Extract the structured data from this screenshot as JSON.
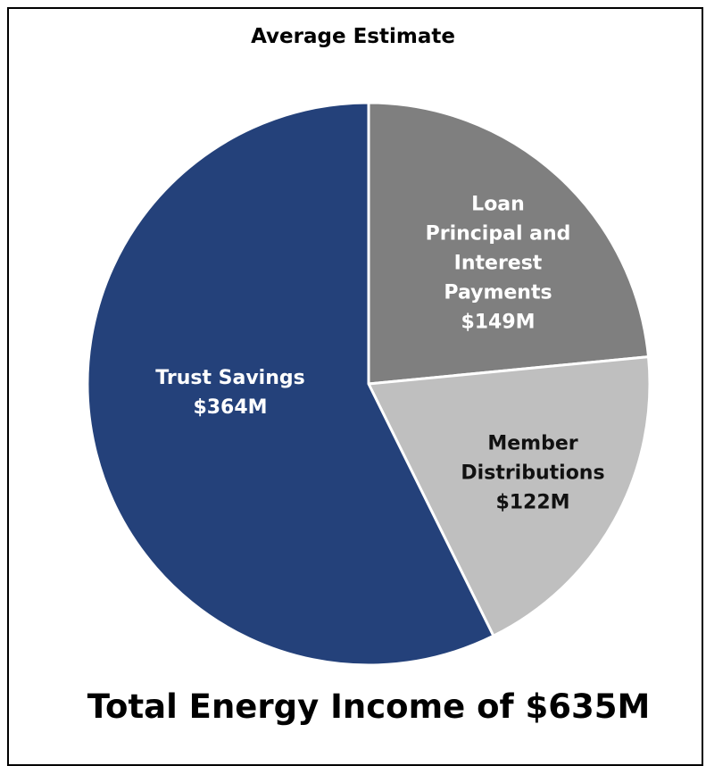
{
  "chart_data": {
    "type": "pie",
    "title": "Average Estimate",
    "annotation": "Total Energy Income of $635M",
    "categories": [
      "Loan Principal and Interest Payments",
      "Member Distributions",
      "Trust Savings"
    ],
    "values": [
      149,
      122,
      364
    ],
    "value_labels": [
      "$149M",
      "$122M",
      "$364M"
    ],
    "colors": [
      "#7f7f7f",
      "#bfbfbf",
      "#24417a"
    ]
  }
}
